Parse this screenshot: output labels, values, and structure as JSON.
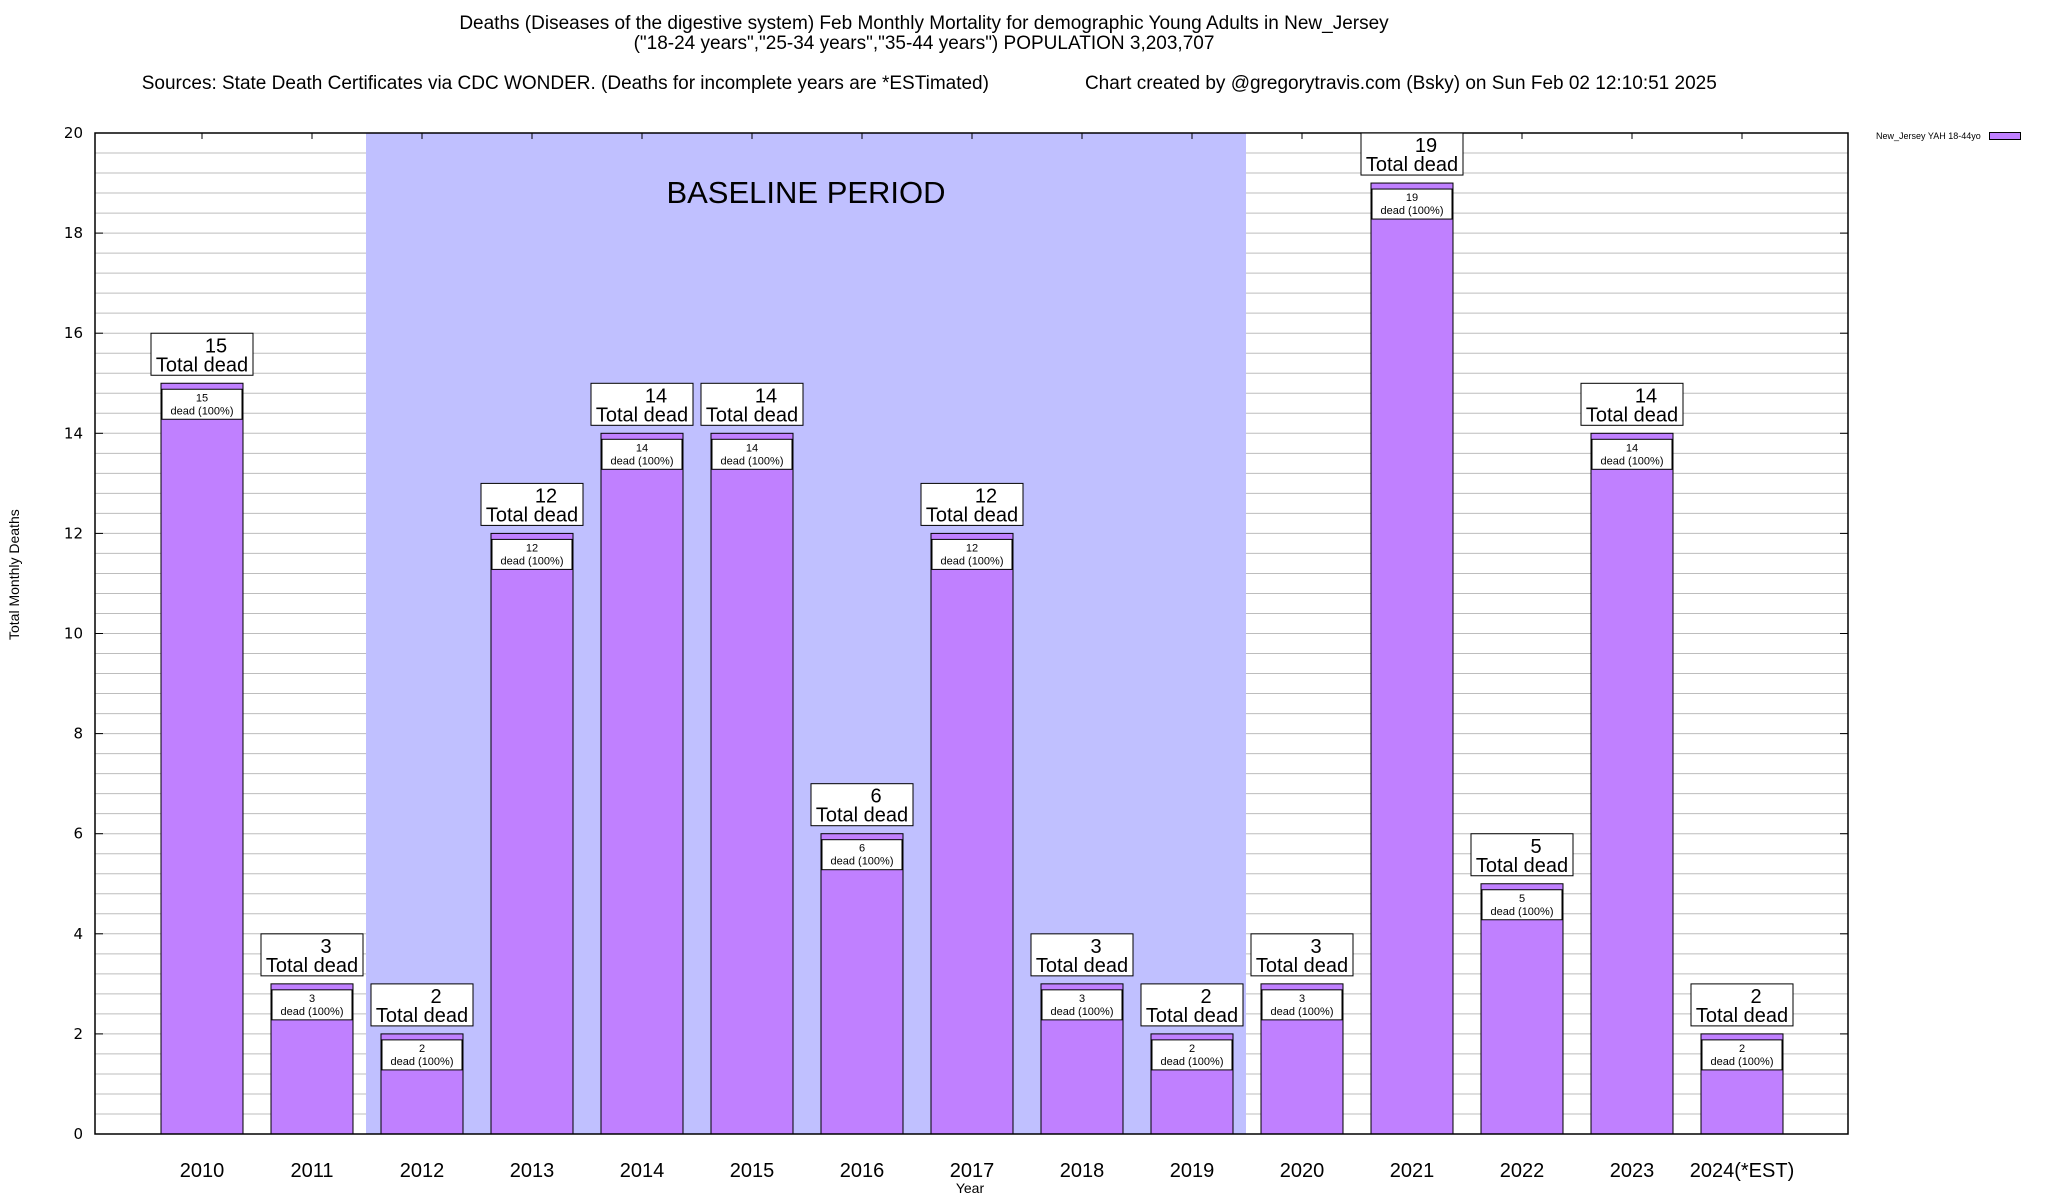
{
  "chart_data": {
    "type": "bar",
    "title": "Deaths (Diseases of the digestive system) Feb Monthly Mortality for demographic Young Adults in New_Jersey",
    "subtitle": "(\"18-24 years\",\"25-34 years\",\"35-44 years\") POPULATION 3,203,707",
    "sources": "Sources: State Death Certificates via CDC WONDER. (Deaths for incomplete years are *ESTimated)",
    "credit": "Chart created by @gregorytravis.com (Bsky) on Sun Feb 02 12:10:51 2025",
    "xlabel": "Year",
    "ylabel": "Total Monthly Deaths",
    "ylim": [
      0,
      20
    ],
    "yticks": [
      0,
      2,
      4,
      6,
      8,
      10,
      12,
      14,
      16,
      18,
      20
    ],
    "minor_grid_step": 0.4,
    "grid": true,
    "categories": [
      "2010",
      "2011",
      "2012",
      "2013",
      "2014",
      "2015",
      "2016",
      "2017",
      "2018",
      "2019",
      "2020",
      "2021",
      "2022",
      "2023",
      "2024(*EST)"
    ],
    "series": [
      {
        "name": "New_Jersey YAH 18-44yo",
        "color": "#c080ff",
        "values": [
          15,
          3,
          2,
          12,
          14,
          14,
          6,
          12,
          3,
          2,
          3,
          19,
          5,
          14,
          2
        ]
      }
    ],
    "total_label_suffix": "Total dead",
    "inner_label_suffix": "dead (100%)",
    "legend": {
      "label": "New_Jersey YAH 18-44yo",
      "position": "top-right-outside"
    },
    "baseline_period": {
      "label": "BASELINE PERIOD",
      "from_category": "2012",
      "to_category": "2019",
      "color": "#c0c0ff"
    }
  }
}
